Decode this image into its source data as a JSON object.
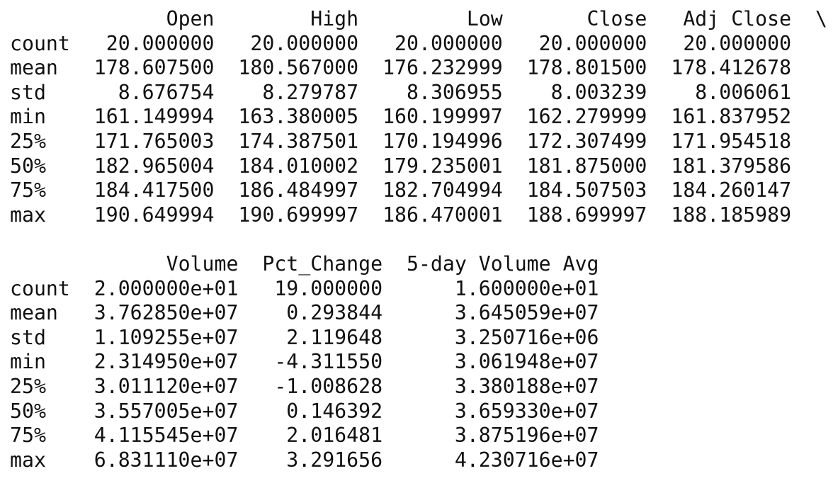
{
  "blocks": [
    {
      "continuation": "\\",
      "columns": [
        "Open",
        "High",
        "Low",
        "Close",
        "Adj Close"
      ],
      "rows": [
        {
          "index": "count",
          "values": [
            "20.000000",
            "20.000000",
            "20.000000",
            "20.000000",
            "20.000000"
          ]
        },
        {
          "index": "mean",
          "values": [
            "178.607500",
            "180.567000",
            "176.232999",
            "178.801500",
            "178.412678"
          ]
        },
        {
          "index": "std",
          "values": [
            "8.676754",
            "8.279787",
            "8.306955",
            "8.003239",
            "8.006061"
          ]
        },
        {
          "index": "min",
          "values": [
            "161.149994",
            "163.380005",
            "160.199997",
            "162.279999",
            "161.837952"
          ]
        },
        {
          "index": "25%",
          "values": [
            "171.765003",
            "174.387501",
            "170.194996",
            "172.307499",
            "171.954518"
          ]
        },
        {
          "index": "50%",
          "values": [
            "182.965004",
            "184.010002",
            "179.235001",
            "181.875000",
            "181.379586"
          ]
        },
        {
          "index": "75%",
          "values": [
            "184.417500",
            "186.484997",
            "182.704994",
            "184.507503",
            "184.260147"
          ]
        },
        {
          "index": "max",
          "values": [
            "190.649994",
            "190.699997",
            "186.470001",
            "188.699997",
            "188.185989"
          ]
        }
      ]
    },
    {
      "continuation": "",
      "columns": [
        "Volume",
        "Pct_Change",
        "5-day Volume Avg"
      ],
      "rows": [
        {
          "index": "count",
          "values": [
            "2.000000e+01",
            "19.000000",
            "1.600000e+01"
          ]
        },
        {
          "index": "mean",
          "values": [
            "3.762850e+07",
            "0.293844",
            "3.645059e+07"
          ]
        },
        {
          "index": "std",
          "values": [
            "1.109255e+07",
            "2.119648",
            "3.250716e+06"
          ]
        },
        {
          "index": "min",
          "values": [
            "2.314950e+07",
            "-4.311550",
            "3.061948e+07"
          ]
        },
        {
          "index": "25%",
          "values": [
            "3.011120e+07",
            "-1.008628",
            "3.380188e+07"
          ]
        },
        {
          "index": "50%",
          "values": [
            "3.557005e+07",
            "0.146392",
            "3.659330e+07"
          ]
        },
        {
          "index": "75%",
          "values": [
            "4.115545e+07",
            "2.016481",
            "3.875196e+07"
          ]
        },
        {
          "index": "max",
          "values": [
            "6.831110e+07",
            "3.291656",
            "4.230716e+07"
          ]
        }
      ]
    }
  ]
}
